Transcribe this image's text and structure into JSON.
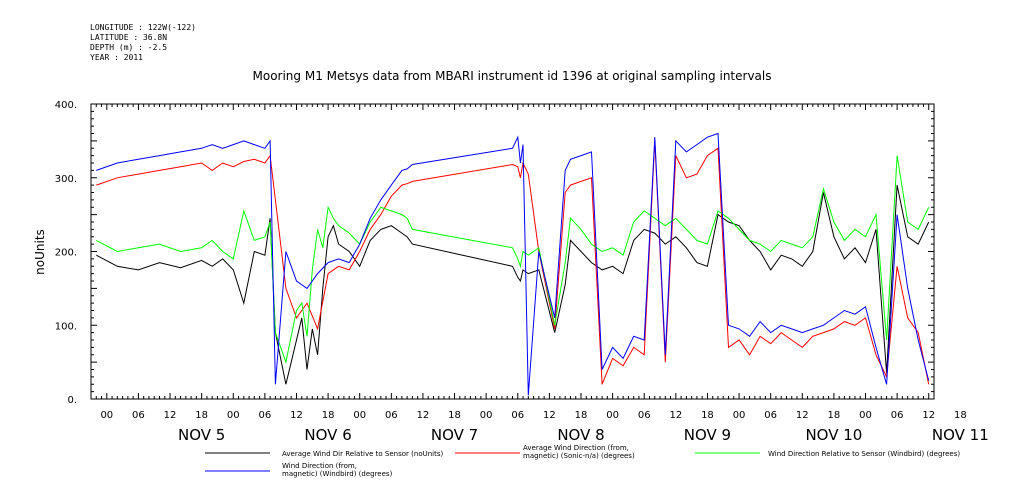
{
  "header": {
    "longitude": "LONGITUDE : 122W(-122)",
    "latitude": "LATITUDE : 36.8N",
    "depth": "DEPTH (m) : -2.5",
    "year": "YEAR : 2011"
  },
  "chart_data": {
    "type": "line",
    "title": "Mooring M1 Metsys data from MBARI instrument id 1396 at original sampling intervals",
    "ylabel": "noUnits",
    "xlabel": "",
    "ylim": [
      0,
      400
    ],
    "yticks": [
      "0.",
      "100.",
      "200.",
      "300.",
      "400."
    ],
    "xlim_hours": [
      -21,
      139
    ],
    "hour_ticks": [
      "00",
      "06",
      "12",
      "18",
      "00",
      "06",
      "12",
      "18",
      "00",
      "06",
      "12",
      "18",
      "00",
      "06",
      "12",
      "18",
      "00",
      "06",
      "12",
      "18",
      "00",
      "06",
      "12",
      "18",
      "00",
      "06",
      "12",
      "18"
    ],
    "date_labels": [
      "NOV  5",
      "NOV  6",
      "NOV  7",
      "NOV  8",
      "NOV  9",
      "NOV 10",
      "NOV 11"
    ],
    "grid": false,
    "legend_position": "bottom",
    "series": [
      {
        "name": "Average Wind Dir Relative to Sensor (noUnits)",
        "color": "#000000",
        "x": [
          -20,
          -16,
          -12,
          -8,
          -4,
          0,
          2,
          4,
          6,
          8,
          10,
          12,
          13,
          14,
          16,
          18,
          19,
          20,
          21,
          22,
          23,
          24,
          25,
          26,
          28,
          30,
          32,
          34,
          36,
          38,
          39,
          40,
          59,
          60,
          60.5,
          61,
          62,
          64,
          67,
          69,
          70,
          72,
          74,
          76,
          78,
          80,
          82,
          84,
          86,
          88,
          90,
          92,
          94,
          96,
          98,
          100,
          102,
          104,
          106,
          108,
          110,
          112,
          114,
          116,
          118,
          120,
          122,
          124,
          126,
          128,
          130,
          132,
          134,
          136,
          138
        ],
        "y": [
          195,
          180,
          175,
          185,
          178,
          188,
          180,
          190,
          175,
          130,
          200,
          195,
          245,
          90,
          20,
          80,
          110,
          40,
          95,
          60,
          150,
          220,
          235,
          210,
          200,
          180,
          215,
          230,
          235,
          225,
          220,
          210,
          180,
          165,
          160,
          175,
          170,
          175,
          90,
          155,
          215,
          200,
          185,
          175,
          180,
          170,
          215,
          230,
          225,
          210,
          220,
          205,
          185,
          180,
          250,
          240,
          235,
          215,
          200,
          175,
          195,
          190,
          180,
          200,
          280,
          220,
          190,
          205,
          185,
          230,
          35,
          290,
          220,
          210,
          240
        ]
      },
      {
        "name": "Average Wind Direction (from, magnetic) (Sonic-n/a) (degrees)",
        "color": "#ff0000",
        "x": [
          -20,
          -16,
          -12,
          -8,
          -4,
          0,
          2,
          4,
          6,
          8,
          10,
          12,
          13,
          14,
          16,
          18,
          20,
          22,
          24,
          26,
          28,
          30,
          32,
          34,
          36,
          38,
          39,
          40,
          59,
          60,
          60.5,
          61,
          62,
          64,
          67,
          69,
          70,
          72,
          74,
          76,
          78,
          80,
          82,
          84,
          86,
          88,
          90,
          92,
          94,
          96,
          98,
          100,
          102,
          104,
          106,
          108,
          110,
          112,
          114,
          116,
          118,
          120,
          122,
          124,
          126,
          128,
          130,
          132,
          134,
          136,
          138
        ],
        "y": [
          290,
          300,
          305,
          310,
          315,
          320,
          310,
          320,
          315,
          322,
          325,
          320,
          330,
          270,
          150,
          110,
          130,
          95,
          170,
          180,
          175,
          200,
          230,
          250,
          275,
          290,
          292,
          295,
          318,
          315,
          300,
          320,
          305,
          200,
          95,
          280,
          290,
          295,
          300,
          20,
          55,
          45,
          70,
          60,
          350,
          50,
          330,
          300,
          305,
          330,
          340,
          70,
          80,
          60,
          85,
          75,
          90,
          80,
          70,
          85,
          90,
          95,
          105,
          100,
          110,
          60,
          30,
          180,
          110,
          90,
          20
        ]
      },
      {
        "name": "Wind Direction Relative to Sensor (Windbird) (degrees)",
        "color": "#00ff00",
        "x": [
          -20,
          -16,
          -12,
          -8,
          -4,
          0,
          2,
          4,
          6,
          8,
          10,
          12,
          13,
          14,
          16,
          18,
          19,
          20,
          21,
          22,
          23,
          24,
          25,
          26,
          28,
          30,
          32,
          34,
          36,
          38,
          39,
          40,
          59,
          60,
          60.5,
          61,
          62,
          64,
          67,
          69,
          70,
          72,
          74,
          76,
          78,
          80,
          82,
          84,
          86,
          88,
          90,
          92,
          94,
          96,
          98,
          100,
          102,
          104,
          106,
          108,
          110,
          112,
          114,
          116,
          118,
          120,
          122,
          124,
          126,
          128,
          130,
          132,
          134,
          136,
          138
        ],
        "y": [
          215,
          200,
          205,
          210,
          200,
          205,
          215,
          200,
          190,
          255,
          215,
          220,
          240,
          90,
          50,
          120,
          130,
          85,
          175,
          230,
          205,
          260,
          245,
          235,
          225,
          210,
          240,
          260,
          255,
          250,
          245,
          230,
          205,
          190,
          180,
          200,
          195,
          205,
          100,
          185,
          245,
          230,
          210,
          200,
          205,
          195,
          240,
          255,
          245,
          235,
          245,
          230,
          215,
          210,
          255,
          245,
          230,
          215,
          210,
          200,
          215,
          210,
          205,
          220,
          285,
          240,
          215,
          230,
          220,
          250,
          80,
          330,
          240,
          230,
          260
        ]
      },
      {
        "name": "Wind Direction (from, magnetic) (Windbird) (degrees)",
        "color": "#0000ff",
        "x": [
          -20,
          -16,
          -12,
          -8,
          -4,
          0,
          2,
          4,
          6,
          8,
          10,
          12,
          13,
          14,
          16,
          18,
          20,
          22,
          24,
          26,
          28,
          30,
          32,
          34,
          36,
          38,
          39,
          40,
          59,
          60,
          60.5,
          61,
          62,
          64,
          67,
          69,
          70,
          72,
          74,
          76,
          78,
          80,
          82,
          84,
          86,
          88,
          90,
          92,
          94,
          96,
          98,
          100,
          102,
          104,
          106,
          108,
          110,
          112,
          114,
          116,
          118,
          120,
          122,
          124,
          126,
          128,
          130,
          132,
          134,
          136,
          138
        ],
        "y": [
          310,
          320,
          325,
          330,
          335,
          340,
          345,
          340,
          345,
          350,
          345,
          340,
          350,
          20,
          200,
          160,
          150,
          170,
          185,
          190,
          185,
          210,
          245,
          270,
          290,
          310,
          312,
          318,
          340,
          355,
          320,
          345,
          5,
          200,
          110,
          310,
          325,
          330,
          335,
          40,
          70,
          55,
          85,
          80,
          355,
          60,
          350,
          335,
          345,
          355,
          360,
          100,
          95,
          85,
          105,
          90,
          100,
          95,
          90,
          95,
          100,
          110,
          120,
          115,
          125,
          70,
          20,
          250,
          150,
          80,
          25
        ]
      }
    ]
  }
}
